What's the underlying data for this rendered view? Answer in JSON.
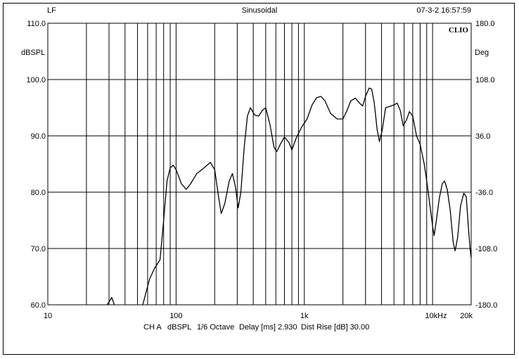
{
  "header": {
    "left": "LF",
    "center": "Sinusoidal",
    "right": "07-3-2 16:57:59",
    "brand": "CLIO"
  },
  "footer": {
    "channel": "CH A",
    "unit": "dBSPL",
    "smoothing": "1/6 Octave",
    "delay": "Delay [ms] 2.930",
    "dist_rise": "Dist Rise [dB] 30.00"
  },
  "chart_data": {
    "type": "line",
    "x_scale": "log",
    "xlim": [
      10,
      20000
    ],
    "ylim": [
      60,
      110
    ],
    "ylim_right": [
      -180,
      180
    ],
    "grid": true,
    "ylabel_left": "dBSPL",
    "ylabel_right": "Deg",
    "x_unit": "Hz",
    "y_ticks_left": [
      "110.0",
      "100.0",
      "90.0",
      "80.0",
      "70.0",
      "60.0"
    ],
    "y_ticks_right": [
      "180.0",
      "108.0",
      "36.0",
      "-36.0",
      "-108.0",
      "-180.0"
    ],
    "x_ticks": [
      {
        "value": 10,
        "label": "10"
      },
      {
        "value": 100,
        "label": "100"
      },
      {
        "value": 1000,
        "label": "1k"
      },
      {
        "value": 10000,
        "label": "10k"
      },
      {
        "value": 20000,
        "label": "20k"
      }
    ],
    "series": [
      {
        "points": [
          [
            29,
            60
          ],
          [
            31.5,
            61.3
          ],
          [
            33,
            60
          ],
          [
            50,
            58
          ],
          [
            55,
            60
          ],
          [
            62,
            64.5
          ],
          [
            68,
            66.5
          ],
          [
            75,
            68
          ],
          [
            80,
            75
          ],
          [
            85,
            82
          ],
          [
            90,
            84.3
          ],
          [
            95,
            84.8
          ],
          [
            100,
            84
          ],
          [
            110,
            81.5
          ],
          [
            120,
            80.5
          ],
          [
            130,
            81.5
          ],
          [
            145,
            83.3
          ],
          [
            165,
            84.3
          ],
          [
            185,
            85.3
          ],
          [
            200,
            84
          ],
          [
            215,
            79
          ],
          [
            225,
            76.2
          ],
          [
            240,
            78
          ],
          [
            260,
            82
          ],
          [
            275,
            83.3
          ],
          [
            290,
            81
          ],
          [
            305,
            77.2
          ],
          [
            320,
            80
          ],
          [
            340,
            88
          ],
          [
            360,
            93.5
          ],
          [
            380,
            95
          ],
          [
            410,
            93.7
          ],
          [
            440,
            93.5
          ],
          [
            470,
            94.5
          ],
          [
            500,
            95
          ],
          [
            540,
            92
          ],
          [
            580,
            88
          ],
          [
            610,
            87.2
          ],
          [
            650,
            88.5
          ],
          [
            700,
            89.8
          ],
          [
            760,
            88.8
          ],
          [
            800,
            87.5
          ],
          [
            860,
            89.5
          ],
          [
            950,
            91.5
          ],
          [
            1050,
            93
          ],
          [
            1150,
            95.5
          ],
          [
            1250,
            96.8
          ],
          [
            1350,
            97
          ],
          [
            1450,
            96.2
          ],
          [
            1600,
            94
          ],
          [
            1800,
            93
          ],
          [
            2000,
            93
          ],
          [
            2150,
            94.5
          ],
          [
            2300,
            96.2
          ],
          [
            2500,
            96.7
          ],
          [
            2700,
            95.8
          ],
          [
            2850,
            95.3
          ],
          [
            3000,
            97
          ],
          [
            3200,
            98.5
          ],
          [
            3350,
            98.3
          ],
          [
            3500,
            96
          ],
          [
            3700,
            91
          ],
          [
            3850,
            89
          ],
          [
            4050,
            91
          ],
          [
            4300,
            95
          ],
          [
            4600,
            95.2
          ],
          [
            5000,
            95.5
          ],
          [
            5300,
            95.8
          ],
          [
            5600,
            94.5
          ],
          [
            5900,
            91.8
          ],
          [
            6250,
            92.8
          ],
          [
            6600,
            94.3
          ],
          [
            7000,
            93.5
          ],
          [
            7500,
            90
          ],
          [
            8000,
            88.5
          ],
          [
            8600,
            85
          ],
          [
            9000,
            82
          ],
          [
            9500,
            78
          ],
          [
            10000,
            74
          ],
          [
            10300,
            72.3
          ],
          [
            10700,
            75
          ],
          [
            11300,
            79
          ],
          [
            11900,
            81.5
          ],
          [
            12400,
            82
          ],
          [
            13000,
            80.5
          ],
          [
            13700,
            77
          ],
          [
            14500,
            71
          ],
          [
            15000,
            69.6
          ],
          [
            15700,
            72
          ],
          [
            16500,
            77.5
          ],
          [
            17500,
            79.8
          ],
          [
            18300,
            79.2
          ],
          [
            19000,
            74
          ],
          [
            19600,
            70
          ],
          [
            20000,
            68.3
          ],
          [
            20600,
            71
          ],
          [
            21000,
            72
          ]
        ]
      }
    ]
  }
}
